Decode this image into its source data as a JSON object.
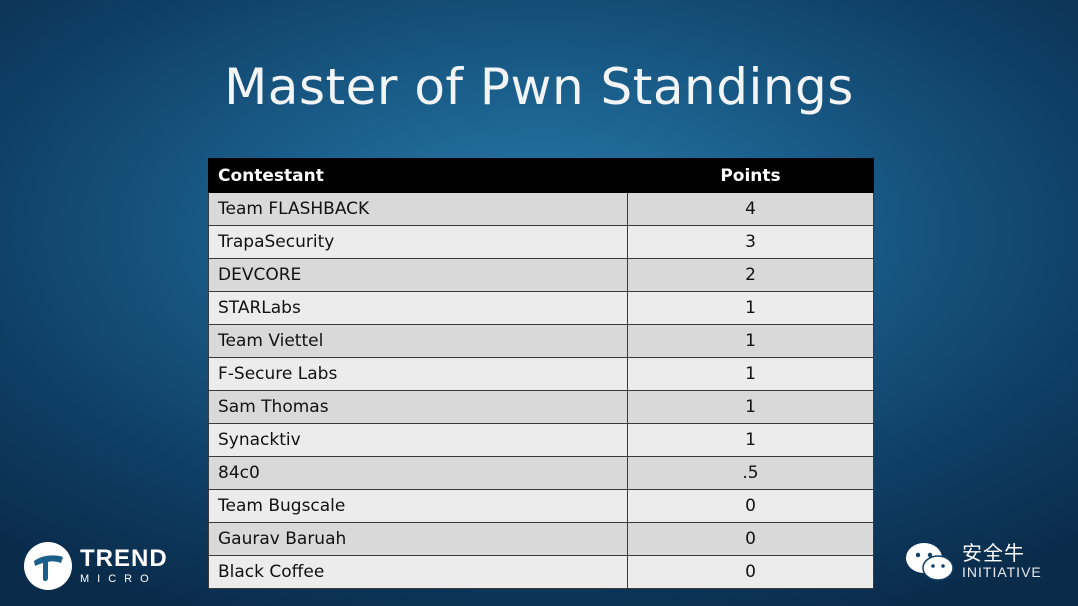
{
  "slide": {
    "title": "Master of Pwn Standings"
  },
  "table": {
    "headers": {
      "contestant": "Contestant",
      "points": "Points"
    },
    "rows": [
      {
        "contestant": "Team FLASHBACK",
        "points": "4"
      },
      {
        "contestant": "TrapaSecurity",
        "points": "3"
      },
      {
        "contestant": "DEVCORE",
        "points": "2"
      },
      {
        "contestant": "STARLabs",
        "points": "1"
      },
      {
        "contestant": "Team Viettel",
        "points": "1"
      },
      {
        "contestant": "F-Secure Labs",
        "points": "1"
      },
      {
        "contestant": "Sam Thomas",
        "points": "1"
      },
      {
        "contestant": "Synacktiv",
        "points": "1"
      },
      {
        "contestant": "84c0",
        "points": ".5"
      },
      {
        "contestant": "Team Bugscale",
        "points": "0"
      },
      {
        "contestant": "Gaurav Baruah",
        "points": "0"
      },
      {
        "contestant": "Black Coffee",
        "points": "0"
      }
    ]
  },
  "logos": {
    "trend_micro": {
      "line1": "TREND",
      "line2": "MICRO",
      "icon": "trend-micro-icon"
    },
    "watermark": {
      "line1": "安全牛",
      "line2": "INITIATIVE",
      "icon": "wechat-icon"
    }
  },
  "colors": {
    "background": "#1a5e8a",
    "header_bg": "#000000",
    "row_odd": "#d9d9d9",
    "row_even": "#ececec",
    "title_text": "#f2f4f6"
  }
}
